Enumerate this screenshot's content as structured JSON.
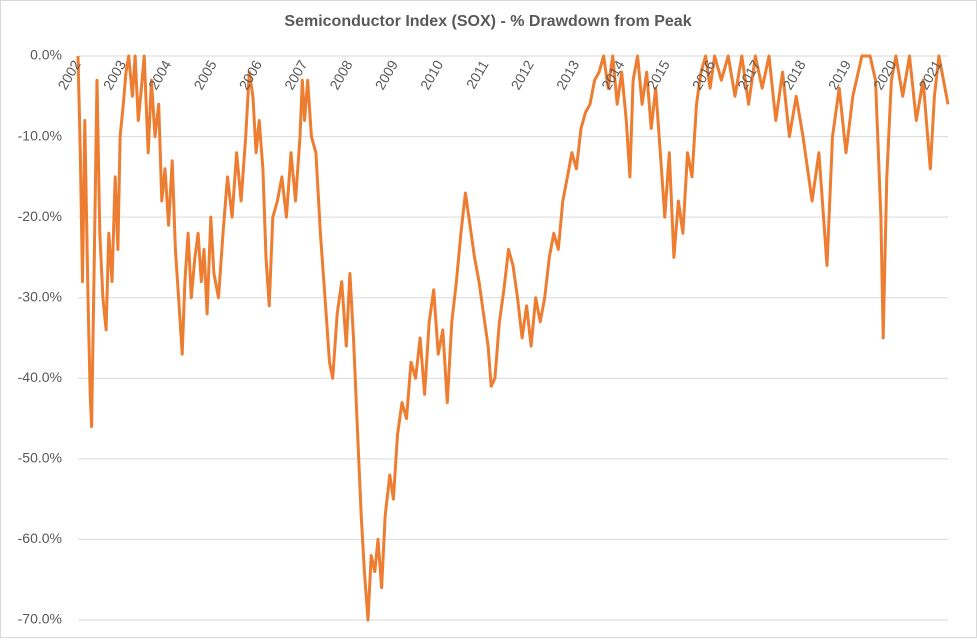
{
  "chart_data": {
    "type": "line",
    "title": "Semiconductor Index (SOX) - % Drawdown from Peak",
    "xlim": [
      2002,
      2021.2
    ],
    "xticks": [
      2002,
      2003,
      2004,
      2005,
      2006,
      2007,
      2008,
      2009,
      2010,
      2011,
      2012,
      2013,
      2014,
      2015,
      2016,
      2017,
      2018,
      2019,
      2020,
      2021
    ],
    "ylim": [
      -70,
      0
    ],
    "yticks": [
      {
        "value": 0,
        "label": "0.0%"
      },
      {
        "value": -10,
        "label": "-10.0%"
      },
      {
        "value": -20,
        "label": "-20.0%"
      },
      {
        "value": -30,
        "label": "-30.0%"
      },
      {
        "value": -40,
        "label": "-40.0%"
      },
      {
        "value": -50,
        "label": "-50.0%"
      },
      {
        "value": -60,
        "label": "-60.0%"
      },
      {
        "value": -70,
        "label": "-70.0%"
      }
    ],
    "grid": true,
    "series": [
      {
        "color": "#ed7d31",
        "x": [
          2002.0,
          2002.05,
          2002.1,
          2002.15,
          2002.22,
          2002.27,
          2002.3,
          2002.36,
          2002.42,
          2002.48,
          2002.55,
          2002.62,
          2002.68,
          2002.75,
          2002.82,
          2002.88,
          2002.93,
          2003.0,
          2003.06,
          2003.12,
          2003.2,
          2003.26,
          2003.33,
          2003.4,
          2003.46,
          2003.55,
          2003.62,
          2003.7,
          2003.78,
          2003.85,
          2003.92,
          2004.0,
          2004.08,
          2004.15,
          2004.22,
          2004.3,
          2004.36,
          2004.43,
          2004.5,
          2004.58,
          2004.65,
          2004.72,
          2004.78,
          2004.85,
          2004.93,
          2005.0,
          2005.1,
          2005.2,
          2005.3,
          2005.4,
          2005.5,
          2005.6,
          2005.7,
          2005.78,
          2005.86,
          2005.93,
          2006.0,
          2006.08,
          2006.15,
          2006.22,
          2006.3,
          2006.4,
          2006.5,
          2006.6,
          2006.7,
          2006.8,
          2006.9,
          2006.95,
          2007.0,
          2007.07,
          2007.15,
          2007.25,
          2007.35,
          2007.45,
          2007.55,
          2007.62,
          2007.72,
          2007.82,
          2007.92,
          2008.0,
          2008.08,
          2008.18,
          2008.25,
          2008.32,
          2008.4,
          2008.47,
          2008.55,
          2008.62,
          2008.7,
          2008.78,
          2008.88,
          2008.96,
          2009.05,
          2009.15,
          2009.25,
          2009.35,
          2009.45,
          2009.55,
          2009.65,
          2009.75,
          2009.85,
          2009.95,
          2010.05,
          2010.15,
          2010.25,
          2010.35,
          2010.45,
          2010.55,
          2010.65,
          2010.75,
          2010.85,
          2010.95,
          2011.05,
          2011.12,
          2011.2,
          2011.3,
          2011.4,
          2011.5,
          2011.6,
          2011.7,
          2011.8,
          2011.9,
          2012.0,
          2012.1,
          2012.2,
          2012.3,
          2012.4,
          2012.5,
          2012.6,
          2012.7,
          2012.8,
          2012.9,
          2013.0,
          2013.1,
          2013.2,
          2013.3,
          2013.4,
          2013.5,
          2013.6,
          2013.7,
          2013.8,
          2013.9,
          2014.0,
          2014.1,
          2014.18,
          2014.25,
          2014.35,
          2014.45,
          2014.55,
          2014.65,
          2014.75,
          2014.85,
          2014.95,
          2015.05,
          2015.15,
          2015.25,
          2015.35,
          2015.45,
          2015.55,
          2015.65,
          2015.75,
          2015.85,
          2015.95,
          2016.05,
          2016.2,
          2016.35,
          2016.5,
          2016.65,
          2016.8,
          2016.95,
          2017.1,
          2017.25,
          2017.4,
          2017.55,
          2017.7,
          2017.85,
          2018.0,
          2018.2,
          2018.35,
          2018.53,
          2018.65,
          2018.8,
          2018.95,
          2019.1,
          2019.3,
          2019.48,
          2019.6,
          2019.72,
          2019.77,
          2019.85,
          2019.95,
          2020.05,
          2020.2,
          2020.35,
          2020.5,
          2020.65,
          2020.81,
          2020.9,
          2021.0,
          2021.1,
          2021.2
        ],
        "values": [
          0,
          -12,
          -28,
          -8,
          -30,
          -42,
          -46,
          -25,
          -3,
          -22,
          -30,
          -34,
          -22,
          -28,
          -15,
          -24,
          -10,
          -6,
          -2,
          0,
          -5,
          0,
          -8,
          -4,
          0,
          -12,
          -3,
          -10,
          -6,
          -18,
          -14,
          -21,
          -13,
          -24,
          -30,
          -37,
          -28,
          -22,
          -30,
          -25,
          -22,
          -28,
          -24,
          -32,
          -20,
          -27,
          -30,
          -22,
          -15,
          -20,
          -12,
          -18,
          -10,
          -2,
          -5,
          -12,
          -8,
          -14,
          -25,
          -31,
          -20,
          -18,
          -15,
          -20,
          -12,
          -18,
          -10,
          -3,
          -8,
          -3,
          -10,
          -12,
          -22,
          -30,
          -38,
          -40,
          -32,
          -28,
          -36,
          -27,
          -35,
          -48,
          -57,
          -64,
          -70,
          -62,
          -64,
          -60,
          -66,
          -57,
          -52,
          -55,
          -47,
          -43,
          -45,
          -38,
          -40,
          -35,
          -42,
          -33,
          -29,
          -37,
          -34,
          -43,
          -33,
          -28,
          -22,
          -17,
          -21,
          -25,
          -28,
          -32,
          -36,
          -41,
          -40,
          -33,
          -29,
          -24,
          -26,
          -30,
          -35,
          -31,
          -36,
          -30,
          -33,
          -30,
          -25,
          -22,
          -24,
          -18,
          -15,
          -12,
          -14,
          -9,
          -7,
          -6,
          -3,
          -2,
          0,
          -4,
          0,
          -6,
          -2,
          -8,
          -15,
          -3,
          0,
          -6,
          -2,
          -9,
          -4,
          -12,
          -20,
          -12,
          -25,
          -18,
          -22,
          -12,
          -15,
          -6,
          -2,
          0,
          -4,
          0,
          -3,
          0,
          -5,
          0,
          -6,
          0,
          -4,
          0,
          -8,
          -2,
          -10,
          -5,
          -10,
          -18,
          -12,
          -26,
          -10,
          -4,
          -12,
          -5,
          0,
          0,
          -3,
          -20,
          -35,
          -15,
          -3,
          0,
          -5,
          0,
          -8,
          -3,
          -14,
          -5,
          0,
          -3,
          -6
        ]
      }
    ]
  }
}
